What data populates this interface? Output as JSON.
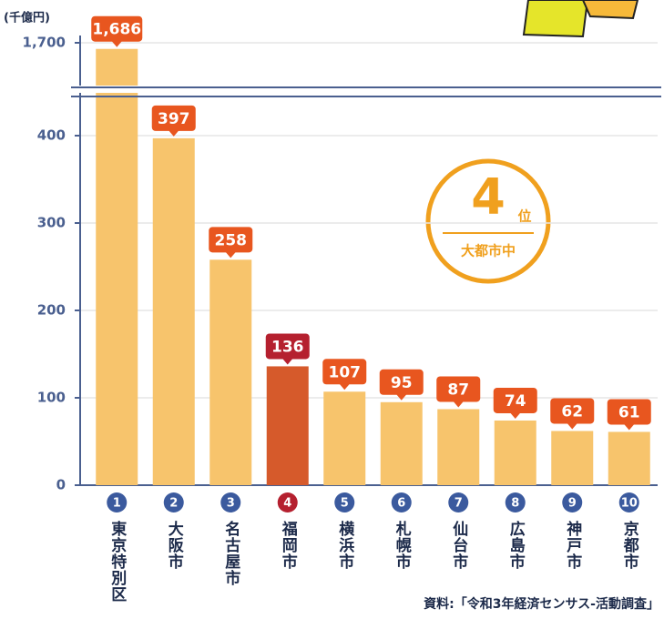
{
  "chart_data": {
    "type": "bar",
    "unit_label": "(千億円)",
    "categories": [
      "東京特別区",
      "大阪市",
      "名古屋市",
      "福岡市",
      "横浜市",
      "札幌市",
      "仙台市",
      "広島市",
      "神戸市",
      "京都市"
    ],
    "ranks": [
      1,
      2,
      3,
      4,
      5,
      6,
      7,
      8,
      9,
      10
    ],
    "values": [
      1686,
      397,
      258,
      136,
      107,
      95,
      87,
      74,
      62,
      61
    ],
    "value_labels": [
      "1,686",
      "397",
      "258",
      "136",
      "107",
      "95",
      "87",
      "74",
      "62",
      "61"
    ],
    "colors": [
      "#f7c46c",
      "#f7c46c",
      "#f7c46c",
      "#d65a2b",
      "#f7c46c",
      "#f7c46c",
      "#f7c46c",
      "#f7c46c",
      "#f7c46c",
      "#f7c46c"
    ],
    "label_colors": [
      "#e8561f",
      "#e8561f",
      "#e8561f",
      "#b5202f",
      "#e8561f",
      "#e8561f",
      "#e8561f",
      "#e8561f",
      "#e8561f",
      "#e8561f"
    ],
    "rank_colors": [
      "#3b5a9e",
      "#3b5a9e",
      "#3b5a9e",
      "#b5202f",
      "#3b5a9e",
      "#3b5a9e",
      "#3b5a9e",
      "#3b5a9e",
      "#3b5a9e",
      "#3b5a9e"
    ],
    "ylim": [
      0,
      1700
    ],
    "ybreak": [
      450,
      1600
    ],
    "yticks": [
      0,
      100,
      200,
      300,
      400,
      {
        "value": 1700,
        "label": "1,700"
      }
    ],
    "grid": true,
    "badge": {
      "rank": "4",
      "suffix": "位",
      "text": "大都市中"
    },
    "source": "資料:「令和3年経済センサス-活動調査」"
  }
}
